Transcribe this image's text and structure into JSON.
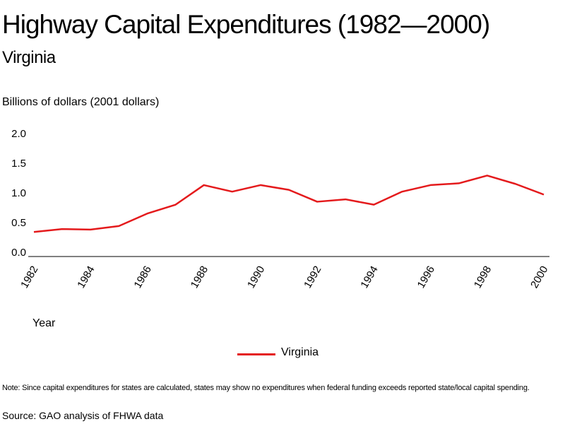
{
  "chart_data": {
    "type": "line",
    "title": "Highway Capital Expenditures (1982—2000)",
    "subtitle": "Virginia",
    "ylabel": "Billions of dollars (2001 dollars)",
    "xlabel": "Year",
    "ylim": [
      0,
      2.0
    ],
    "yticks": [
      "0.0",
      "0.5",
      "1.0",
      "1.5",
      "2.0"
    ],
    "xticks": [
      "1982",
      "1984",
      "1986",
      "1988",
      "1990",
      "1992",
      "1994",
      "1996",
      "1998",
      "2000"
    ],
    "x": [
      1982,
      1983,
      1984,
      1985,
      1986,
      1987,
      1988,
      1989,
      1990,
      1991,
      1992,
      1993,
      1994,
      1995,
      1996,
      1997,
      1998,
      1999,
      2000
    ],
    "series": [
      {
        "name": "Virginia",
        "color": "#e41a1c",
        "values": [
          0.33,
          0.38,
          0.37,
          0.43,
          0.64,
          0.79,
          1.12,
          1.01,
          1.12,
          1.04,
          0.84,
          0.88,
          0.79,
          1.01,
          1.12,
          1.15,
          1.28,
          1.14,
          0.96
        ]
      }
    ],
    "legend": "bottom-center",
    "grid": false,
    "note": "Note: Since capital expenditures for states are calculated, states may show no expenditures when federal funding exceeds reported state/local capital spending.",
    "source": "Source: GAO analysis of FHWA data"
  }
}
